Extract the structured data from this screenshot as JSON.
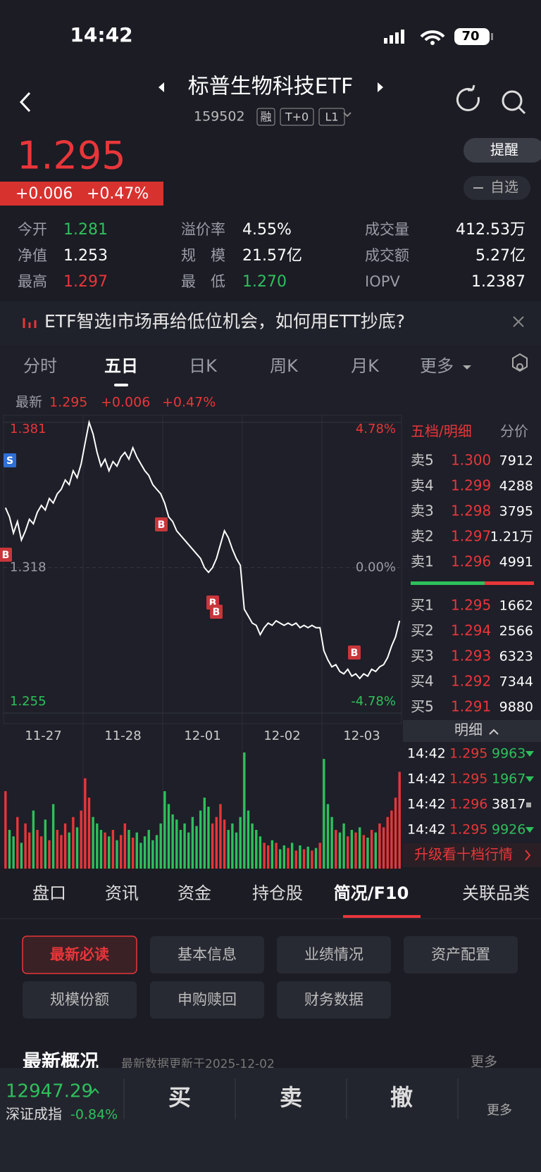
{
  "status_bar": {
    "time": "14:42",
    "battery": "70"
  },
  "header": {
    "title": "标普生物科技ETF",
    "code": "159502",
    "tags": [
      "融",
      "T+0",
      "L1"
    ]
  },
  "quote": {
    "price": "1.295",
    "change": "+0.006",
    "change_pct": "+0.47%"
  },
  "actions": [
    "提醒",
    "自选"
  ],
  "stats": [
    [
      {
        "label": "今开",
        "value": "1.281",
        "color": "#2ec05c"
      },
      {
        "label": "溢价率",
        "value": "4.55%",
        "color": "#ffffff"
      },
      {
        "label": "成交量",
        "value": "412.53万",
        "color": "#ffffff"
      }
    ],
    [
      {
        "label": "净值",
        "value": "1.253",
        "color": "#ffffff"
      },
      {
        "label": "规　模",
        "value": "21.57亿",
        "color": "#ffffff"
      },
      {
        "label": "成交额",
        "value": "5.27亿",
        "color": "#ffffff"
      }
    ],
    [
      {
        "label": "最高",
        "value": "1.297",
        "color": "#e8363a"
      },
      {
        "label": "最　低",
        "value": "1.270",
        "color": "#2ec05c"
      },
      {
        "label": "IOPV",
        "value": "1.2387",
        "color": "#ffffff"
      }
    ]
  ],
  "banner": "ETF智选I市场再给低位机会，如何用ETT抄底?",
  "chart_tabs": [
    "分时",
    "五日",
    "日K",
    "周K",
    "月K",
    "更多"
  ],
  "latest": {
    "label": "最新",
    "price": "1.295",
    "change": "+0.006",
    "change_pct": "+0.47%"
  },
  "chart": {
    "type": "line",
    "color": "#ffffff",
    "ylim": [
      1.255,
      1.381
    ],
    "yticks": [
      1.255,
      1.318,
      1.381
    ],
    "pct_labels": [
      "-4.78%",
      "0.00%",
      "4.78%"
    ],
    "categories": [
      "11-27",
      "11-28",
      "12-01",
      "12-02",
      "12-03"
    ],
    "values": [
      1.344,
      1.34,
      1.333,
      1.338,
      1.33,
      1.334,
      1.339,
      1.337,
      1.342,
      1.345,
      1.343,
      1.348,
      1.346,
      1.35,
      1.352,
      1.356,
      1.354,
      1.36,
      1.357,
      1.363,
      1.372,
      1.381,
      1.376,
      1.368,
      1.362,
      1.365,
      1.36,
      1.364,
      1.362,
      1.366,
      1.368,
      1.365,
      1.37,
      1.366,
      1.363,
      1.36,
      1.358,
      1.354,
      1.352,
      1.35,
      1.346,
      1.34,
      1.338,
      1.334,
      1.332,
      1.33,
      1.328,
      1.326,
      1.324,
      1.322,
      1.318,
      1.316,
      1.318,
      1.322,
      1.328,
      1.334,
      1.331,
      1.326,
      1.322,
      1.319,
      1.3,
      1.297,
      1.294,
      1.293,
      1.289,
      1.292,
      1.294,
      1.293,
      1.295,
      1.294,
      1.293,
      1.294,
      1.293,
      1.294,
      1.292,
      1.293,
      1.292,
      1.293,
      1.292,
      1.292,
      1.282,
      1.278,
      1.275,
      1.276,
      1.273,
      1.272,
      1.274,
      1.271,
      1.272,
      1.27,
      1.272,
      1.271,
      1.274,
      1.273,
      1.275,
      1.276,
      1.279,
      1.284,
      1.288,
      1.295
    ],
    "volume": [
      60,
      30,
      25,
      40,
      20,
      35,
      28,
      45,
      30,
      25,
      38,
      22,
      50,
      30,
      26,
      35,
      28,
      40,
      32,
      45,
      70,
      55,
      40,
      35,
      30,
      28,
      25,
      30,
      22,
      26,
      35,
      30,
      24,
      28,
      20,
      25,
      30,
      22,
      26,
      35,
      60,
      50,
      42,
      38,
      30,
      35,
      28,
      40,
      33,
      45,
      55,
      48,
      35,
      40,
      50,
      38,
      30,
      35,
      28,
      40,
      90,
      45,
      35,
      30,
      25,
      20,
      18,
      22,
      20,
      15,
      18,
      16,
      20,
      14,
      18,
      15,
      17,
      14,
      16,
      20,
      85,
      50,
      40,
      30,
      28,
      35,
      25,
      30,
      28,
      32,
      26,
      24,
      30,
      28,
      35,
      32,
      40,
      45,
      55,
      75
    ],
    "markers": [
      "S",
      "B",
      "B",
      "B",
      "B",
      "B"
    ]
  },
  "order_book": {
    "tabs": [
      "五档/明细",
      "分价"
    ],
    "asks": [
      {
        "label": "卖5",
        "price": "1.300",
        "volume": "7912"
      },
      {
        "label": "卖4",
        "price": "1.299",
        "volume": "4288"
      },
      {
        "label": "卖3",
        "price": "1.298",
        "volume": "3795"
      },
      {
        "label": "卖2",
        "price": "1.297",
        "volume": "1.21万"
      },
      {
        "label": "卖1",
        "price": "1.296",
        "volume": "4991"
      }
    ],
    "bids": [
      {
        "label": "买1",
        "price": "1.295",
        "volume": "1662"
      },
      {
        "label": "买2",
        "price": "1.294",
        "volume": "2566"
      },
      {
        "label": "买3",
        "price": "1.293",
        "volume": "6323"
      },
      {
        "label": "买4",
        "price": "1.292",
        "volume": "7344"
      },
      {
        "label": "买5",
        "price": "1.291",
        "volume": "9880"
      }
    ],
    "detail_label": "明细",
    "trades": [
      {
        "time": "14:42",
        "price": "1.295",
        "volume": "9963",
        "color": "#2ec05c"
      },
      {
        "time": "14:42",
        "price": "1.295",
        "volume": "1967",
        "color": "#2ec05c"
      },
      {
        "time": "14:42",
        "price": "1.296",
        "volume": "3817",
        "color": "#ffffff"
      },
      {
        "time": "14:42",
        "price": "1.295",
        "volume": "9926",
        "color": "#2ec05c"
      }
    ],
    "upgrade": "升级看十档行情"
  },
  "section_tabs": [
    "盘口",
    "资讯",
    "资金",
    "持仓股",
    "简况/F10",
    "关联品类"
  ],
  "f10_buttons": [
    "最新必读",
    "基本信息",
    "业绩情况",
    "资产配置",
    "规模份额",
    "申购赎回",
    "财务数据"
  ],
  "overview": {
    "title": "最新概况",
    "note": "最新数据更新于2025-12-02",
    "more": "更多"
  },
  "index_bar": {
    "value": "12947.29",
    "name": "深证成指",
    "change": "-0.84%"
  },
  "trade_buttons": [
    "买",
    "卖",
    "撤"
  ],
  "more": "更多"
}
